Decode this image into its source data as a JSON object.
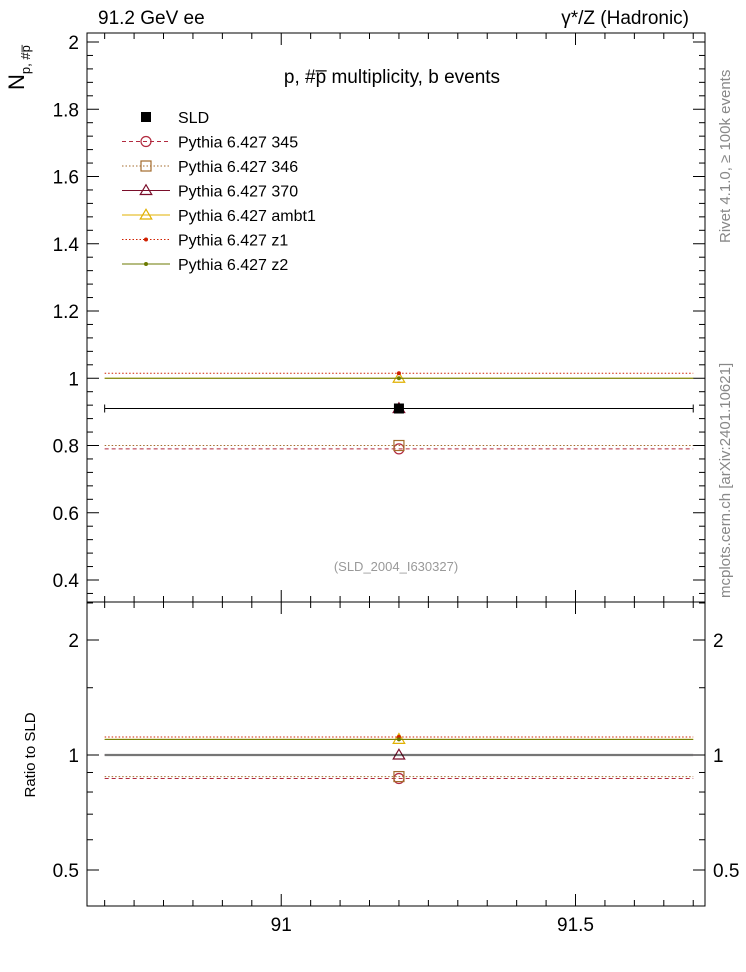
{
  "header": {
    "left": "91.2 GeV ee",
    "right": "γ*/Z (Hadronic)"
  },
  "side": {
    "rivet": "Rivet 4.1.0, ≥ 100k events",
    "mcplots": "mcplots.cern.ch [arXiv:2401.10621]"
  },
  "chart_data": [
    {
      "type": "scatter",
      "title": "p, #p̅ multiplicity, b events",
      "ylabel": "N",
      "ylabel_sub": "p, #p̅",
      "watermark": "(SLD_2004_I630327)",
      "xlim": [
        90.67,
        91.72
      ],
      "ylim": [
        0.34,
        2.03
      ],
      "yticks": [
        "0.4",
        "0.6",
        "0.8",
        "1",
        "1.2",
        "1.4",
        "1.6",
        "1.8",
        "2"
      ],
      "x_bin": [
        90.7,
        91.7
      ],
      "x_center": 91.2,
      "series": [
        {
          "name": "SLD",
          "value": 0.91,
          "error": 0.01,
          "color": "#000000",
          "marker": "filled-square",
          "line": "none"
        },
        {
          "name": "Pythia 6.427 345",
          "value": 0.79,
          "color": "#b22a3f",
          "marker": "open-circle",
          "line": "dashed"
        },
        {
          "name": "Pythia 6.427 346",
          "value": 0.8,
          "color": "#a36b2c",
          "marker": "open-square",
          "line": "dotted"
        },
        {
          "name": "Pythia 6.427 370",
          "value": 0.91,
          "color": "#7a0e2a",
          "marker": "open-triangle",
          "line": "solid"
        },
        {
          "name": "Pythia 6.427 ambt1",
          "value": 1.0,
          "color": "#e0b000",
          "marker": "open-triangle",
          "line": "solid"
        },
        {
          "name": "Pythia 6.427 z1",
          "value": 1.015,
          "color": "#d02000",
          "marker": "small-dot",
          "line": "dotted"
        },
        {
          "name": "Pythia 6.427 z2",
          "value": 1.0,
          "color": "#6b7a00",
          "marker": "small-dot",
          "line": "solid"
        }
      ]
    },
    {
      "type": "scatter",
      "ylabel": "Ratio to SLD",
      "scale": "log",
      "xlim": [
        90.67,
        91.72
      ],
      "ylim": [
        0.4,
        2.5
      ],
      "yticks": [
        "0.5",
        "1",
        "2"
      ],
      "xticks": [
        "91",
        "91.5"
      ],
      "ratios": [
        {
          "name": "SLD",
          "value": 1.0,
          "error": 0.011
        },
        {
          "name": "Pythia 6.427 345",
          "value": 0.868
        },
        {
          "name": "Pythia 6.427 346",
          "value": 0.878
        },
        {
          "name": "Pythia 6.427 370",
          "value": 1.0
        },
        {
          "name": "Pythia 6.427 ambt1",
          "value": 1.099
        },
        {
          "name": "Pythia 6.427 z1",
          "value": 1.115
        },
        {
          "name": "Pythia 6.427 z2",
          "value": 1.099
        }
      ]
    }
  ]
}
